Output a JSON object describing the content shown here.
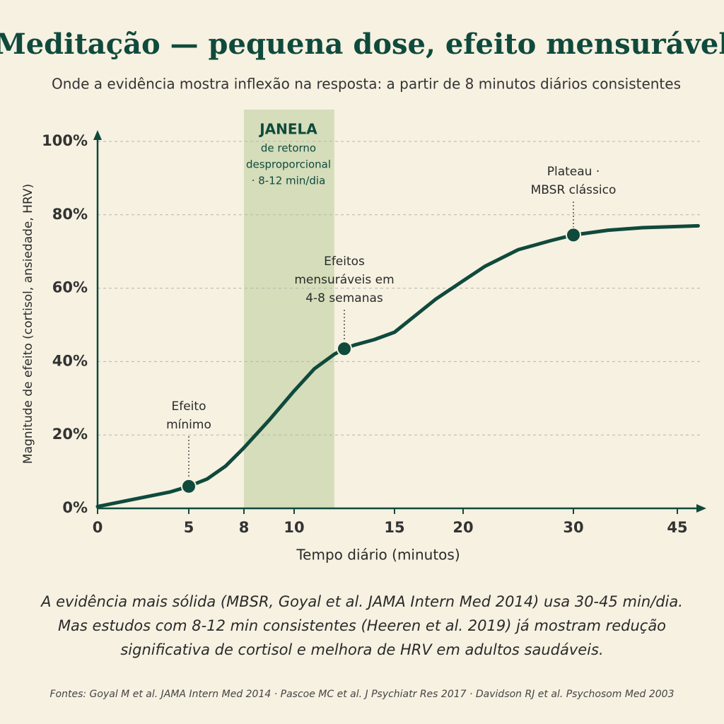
{
  "chart_data": {
    "type": "line",
    "title": "Meditação — pequena dose, efeito mensurável",
    "subtitle": "Onde a evidência mostra inflexão na resposta: a partir de 8 minutos diários consistentes",
    "y_label": "Magnitude de efeito (cortisol, ansiedade, HRV)",
    "x_label": "Tempo diário (minutos)",
    "xlim": [
      0,
      48
    ],
    "xticks": [
      0,
      5,
      8,
      10,
      15,
      20,
      30,
      45
    ],
    "ylim": [
      0,
      100
    ],
    "yticks": [
      {
        "value": 0,
        "label": "0%"
      },
      {
        "value": 20,
        "label": "20%"
      },
      {
        "value": 40,
        "label": "40%"
      },
      {
        "value": 60,
        "label": "60%"
      },
      {
        "value": 80,
        "label": "80%"
      },
      {
        "value": 100,
        "label": "100%"
      }
    ],
    "grid": true,
    "series": [
      {
        "color": "#0f4a3c",
        "x": [
          0,
          2,
          4,
          5,
          6,
          7,
          8,
          9,
          10,
          11,
          12,
          12.5,
          13,
          14,
          15,
          16,
          18,
          20,
          22,
          25,
          28,
          30,
          35,
          40,
          45,
          48
        ],
        "values": [
          0.5,
          2.5,
          4.5,
          6,
          8,
          11.5,
          16.5,
          24,
          32,
          38,
          42,
          43.5,
          44.5,
          46,
          48,
          51,
          57,
          62,
          66,
          70.5,
          73,
          74.5,
          75.8,
          76.5,
          76.8,
          77
        ]
      }
    ],
    "window": {
      "range": [
        8,
        12
      ],
      "color": "#d5ddbb",
      "title": "JANELA",
      "lines": [
        "de retorno",
        "desproporcional",
        "· 8-12 min/dia"
      ]
    },
    "markers": [
      {
        "x": 5,
        "value": 6,
        "lines": [
          "Efeito",
          "mínimo"
        ]
      },
      {
        "x": 12.5,
        "value": 43.5,
        "lines": [
          "Efeitos",
          "mensuráveis em",
          "4-8 semanas"
        ]
      },
      {
        "x": 30,
        "value": 74.5,
        "lines": [
          "Plateau ·",
          "MBSR clássico"
        ]
      }
    ],
    "notes": [
      "A evidência mais sólida (MBSR, Goyal et al. JAMA Intern Med 2014) usa 30-45 min/dia.",
      "Mas estudos com 8-12 min consistentes (Heeren et al. 2019) já mostram redução",
      "significativa de cortisol e melhora de HRV em adultos saudáveis."
    ],
    "sources": "Fontes: Goyal M et al. JAMA Intern Med 2014 · Pascoe MC et al. J Psychiatr Res 2017 · Davidson RJ et al. Psychosom Med 2003"
  }
}
